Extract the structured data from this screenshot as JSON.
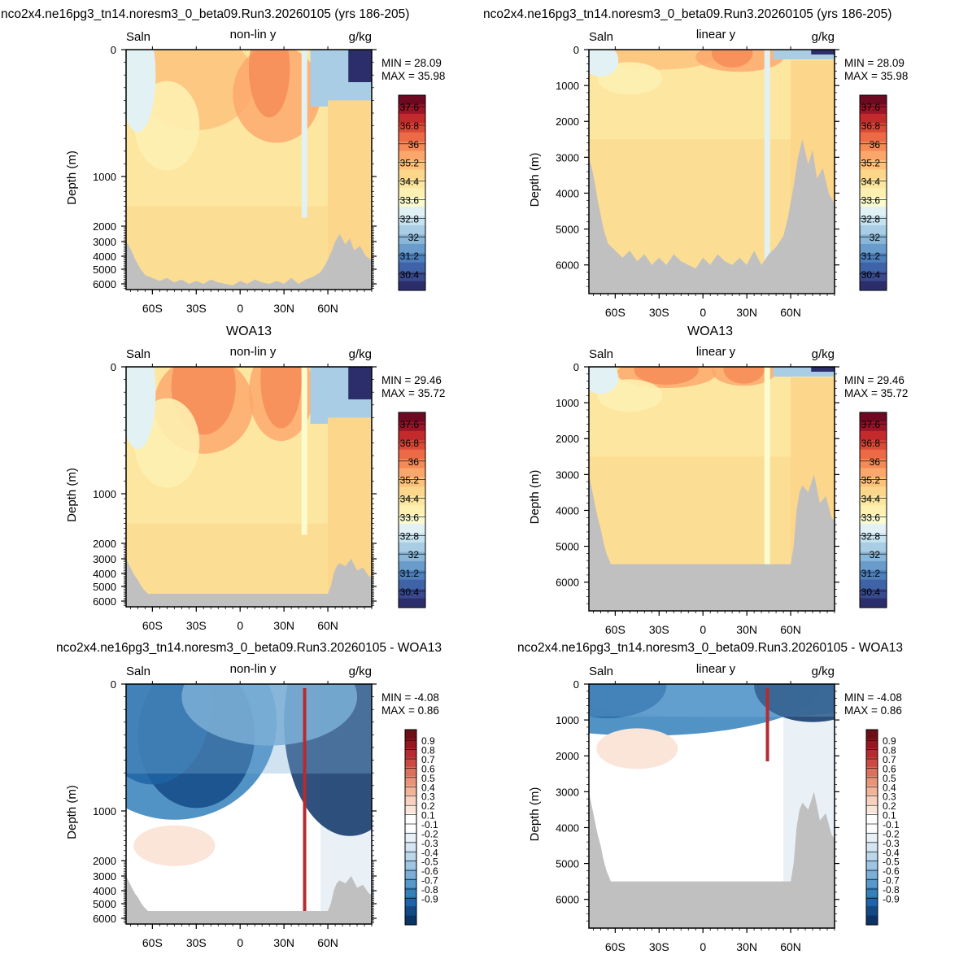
{
  "row_titles": [
    {
      "left": "nco2x4.ne16pg3_tn14.noresm3_0_beta09.Run3.20260105 (yrs 186-205)",
      "right": "nco2x4.ne16pg3_tn14.noresm3_0_beta09.Run3.20260105 (yrs 186-205)"
    },
    {
      "left": "WOA13",
      "right": "WOA13"
    },
    {
      "left": "nco2x4.ne16pg3_tn14.noresm3_0_beta09.Run3.20260105 - WOA13",
      "right": "nco2x4.ne16pg3_tn14.noresm3_0_beta09.Run3.20260105 - WOA13"
    }
  ],
  "colors": {
    "land": "#c0c0c0",
    "abs_palette": [
      "#2c2e6b",
      "#3a4a8f",
      "#3f63a6",
      "#4d7fbb",
      "#6a9ccb",
      "#8ab6d8",
      "#a9cde4",
      "#c7e2ef",
      "#e2f1f4",
      "#fbfbd0",
      "#fdf0b0",
      "#fde6a0",
      "#fcd68b",
      "#fcc17a",
      "#fba66a",
      "#f58a56",
      "#ec6a45",
      "#db4937",
      "#c22a2c",
      "#9c1428",
      "#6d0a22"
    ],
    "diff_palette": [
      "#0c3366",
      "#134a86",
      "#1f64a4",
      "#3480bb",
      "#5698c9",
      "#7bafd6",
      "#9ec5e2",
      "#bcd7ea",
      "#d5e5f1",
      "#e9f1f7",
      "#ffffff",
      "#ffffff",
      "#fbe4d8",
      "#f8d0bd",
      "#f2b39a",
      "#e99379",
      "#dc705d",
      "#cc4a43",
      "#b52b30",
      "#96151f",
      "#6e0f18"
    ]
  },
  "panels": [
    {
      "id": "model-nonlin",
      "left_label": "Saln",
      "center_label": "non-lin y",
      "right_label": "g/kg",
      "min_text": "MIN =  28.09",
      "max_text": "MAX =  35.98",
      "yaxis_label": "Depth (m)",
      "scale": "non-lin"
    },
    {
      "id": "model-lin",
      "left_label": "Saln",
      "center_label": "linear y",
      "right_label": "g/kg",
      "min_text": "MIN =  28.09",
      "max_text": "MAX =  35.98",
      "yaxis_label": "Depth (m)",
      "scale": "linear"
    },
    {
      "id": "obs-nonlin",
      "left_label": "Saln",
      "center_label": "non-lin y",
      "right_label": "g/kg",
      "min_text": "MIN =  29.46",
      "max_text": "MAX =  35.72",
      "yaxis_label": "Depth (m)",
      "scale": "non-lin"
    },
    {
      "id": "obs-lin",
      "left_label": "Saln",
      "center_label": "linear y",
      "right_label": "g/kg",
      "min_text": "MIN =  29.46",
      "max_text": "MAX =  35.72",
      "yaxis_label": "Depth (m)",
      "scale": "linear"
    },
    {
      "id": "diff-nonlin",
      "left_label": "Saln",
      "center_label": "non-lin y",
      "right_label": "g/kg",
      "min_text": "MIN =  -4.08",
      "max_text": "MAX =  0.86",
      "yaxis_label": "Depth (m)",
      "scale": "non-lin"
    },
    {
      "id": "diff-lin",
      "left_label": "Saln",
      "center_label": "linear y",
      "right_label": "g/kg",
      "min_text": "MIN =  -4.08",
      "max_text": "MAX =  0.86",
      "yaxis_label": "Depth (m)",
      "scale": "linear"
    }
  ],
  "chart_data": [
    {
      "type": "heatmap",
      "panel": "model-nonlin",
      "x_ticks": [
        -60,
        -30,
        0,
        30,
        60
      ],
      "x_tick_labels": [
        "60S",
        "30S",
        "0",
        "30N",
        "60N"
      ],
      "xlim": [
        -78,
        90
      ],
      "y_ticks": [
        0,
        1000,
        2000,
        3000,
        4000,
        5000,
        6000
      ],
      "y_tick_labels": [
        "0",
        "1000",
        "2000",
        "3000",
        "4000",
        "5000",
        "6000"
      ],
      "ylim": [
        0,
        6500
      ],
      "ylabel": "Depth (m)",
      "colorbar_labels": [
        "37.6",
        "36.8",
        "36",
        "35.2",
        "34.4",
        "33.6",
        "32.8",
        "32",
        "31.2",
        "30.4"
      ],
      "min": 28.09,
      "max": 35.98
    },
    {
      "type": "heatmap",
      "panel": "model-lin",
      "x_ticks": [
        -60,
        -30,
        0,
        30,
        60
      ],
      "x_tick_labels": [
        "60S",
        "30S",
        "0",
        "30N",
        "60N"
      ],
      "xlim": [
        -78,
        90
      ],
      "y_ticks": [
        0,
        1000,
        2000,
        3000,
        4000,
        5000,
        6000
      ],
      "y_tick_labels": [
        "0",
        "1000",
        "2000",
        "3000",
        "4000",
        "5000",
        "6000"
      ],
      "ylim": [
        0,
        6800
      ],
      "ylabel": "Depth (m)",
      "colorbar_labels": [
        "37.6",
        "36.8",
        "36",
        "35.2",
        "34.4",
        "33.6",
        "32.8",
        "32",
        "31.2",
        "30.4"
      ],
      "min": 28.09,
      "max": 35.98
    },
    {
      "type": "heatmap",
      "panel": "obs-nonlin",
      "x_ticks": [
        -60,
        -30,
        0,
        30,
        60
      ],
      "x_tick_labels": [
        "60S",
        "30S",
        "0",
        "30N",
        "60N"
      ],
      "xlim": [
        -78,
        90
      ],
      "y_ticks": [
        0,
        1000,
        2000,
        3000,
        4000,
        5000,
        6000
      ],
      "y_tick_labels": [
        "0",
        "1000",
        "2000",
        "3000",
        "4000",
        "5000",
        "6000"
      ],
      "ylim": [
        0,
        6500
      ],
      "ylabel": "Depth (m)",
      "colorbar_labels": [
        "37.6",
        "36.8",
        "36",
        "35.2",
        "34.4",
        "33.6",
        "32.8",
        "32",
        "31.2",
        "30.4"
      ],
      "min": 29.46,
      "max": 35.72
    },
    {
      "type": "heatmap",
      "panel": "obs-lin",
      "x_ticks": [
        -60,
        -30,
        0,
        30,
        60
      ],
      "x_tick_labels": [
        "60S",
        "30S",
        "0",
        "30N",
        "60N"
      ],
      "xlim": [
        -78,
        90
      ],
      "y_ticks": [
        0,
        1000,
        2000,
        3000,
        4000,
        5000,
        6000
      ],
      "y_tick_labels": [
        "0",
        "1000",
        "2000",
        "3000",
        "4000",
        "5000",
        "6000"
      ],
      "ylim": [
        0,
        6800
      ],
      "ylabel": "Depth (m)",
      "colorbar_labels": [
        "37.6",
        "36.8",
        "36",
        "35.2",
        "34.4",
        "33.6",
        "32.8",
        "32",
        "31.2",
        "30.4"
      ],
      "min": 29.46,
      "max": 35.72
    },
    {
      "type": "heatmap",
      "panel": "diff-nonlin",
      "x_ticks": [
        -60,
        -30,
        0,
        30,
        60
      ],
      "x_tick_labels": [
        "60S",
        "30S",
        "0",
        "30N",
        "60N"
      ],
      "xlim": [
        -78,
        90
      ],
      "y_ticks": [
        0,
        1000,
        2000,
        3000,
        4000,
        5000,
        6000
      ],
      "y_tick_labels": [
        "0",
        "1000",
        "2000",
        "3000",
        "4000",
        "5000",
        "6000"
      ],
      "ylim": [
        0,
        6500
      ],
      "ylabel": "Depth (m)",
      "colorbar_labels": [
        "0.9",
        "0.8",
        "0.7",
        "0.6",
        "0.5",
        "0.4",
        "0.3",
        "0.2",
        "0.1",
        "-0.1",
        "-0.2",
        "-0.3",
        "-0.4",
        "-0.5",
        "-0.6",
        "-0.7",
        "-0.8",
        "-0.9"
      ],
      "min": -4.08,
      "max": 0.86
    },
    {
      "type": "heatmap",
      "panel": "diff-lin",
      "x_ticks": [
        -60,
        -30,
        0,
        30,
        60
      ],
      "x_tick_labels": [
        "60S",
        "30S",
        "0",
        "30N",
        "60N"
      ],
      "xlim": [
        -78,
        90
      ],
      "y_ticks": [
        0,
        1000,
        2000,
        3000,
        4000,
        5000,
        6000
      ],
      "y_tick_labels": [
        "0",
        "1000",
        "2000",
        "3000",
        "4000",
        "5000",
        "6000"
      ],
      "ylim": [
        0,
        6800
      ],
      "ylabel": "Depth (m)",
      "colorbar_labels": [
        "0.9",
        "0.8",
        "0.7",
        "0.6",
        "0.5",
        "0.4",
        "0.3",
        "0.2",
        "0.1",
        "-0.1",
        "-0.2",
        "-0.3",
        "-0.4",
        "-0.5",
        "-0.6",
        "-0.7",
        "-0.8",
        "-0.9"
      ],
      "min": -4.08,
      "max": 0.86
    }
  ]
}
